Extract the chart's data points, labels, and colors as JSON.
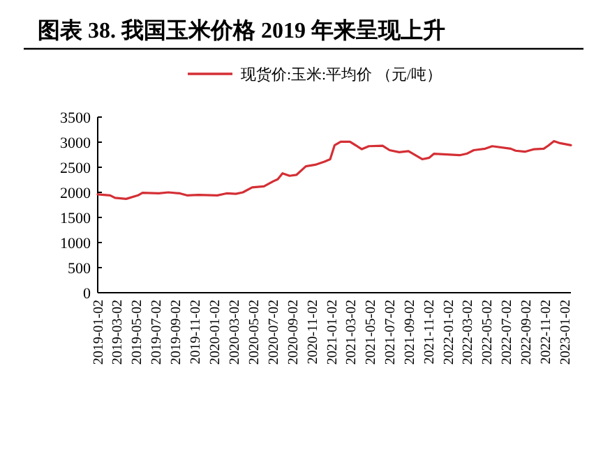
{
  "chart_data": {
    "type": "line",
    "title": "图表 38. 我国玉米价格 2019 年来呈现上升",
    "legend": "top",
    "marker": "none",
    "line_style": "solid",
    "ylim": [
      0,
      3500
    ],
    "yticks": [
      0,
      500,
      1000,
      1500,
      2000,
      2500,
      3000,
      3500
    ],
    "xlim": [
      "2019-01-02",
      "2023-01-21"
    ],
    "xticks": [
      "2019-01-02",
      "2019-03-02",
      "2019-05-02",
      "2019-07-02",
      "2019-09-02",
      "2019-11-02",
      "2020-01-02",
      "2020-03-02",
      "2020-05-02",
      "2020-07-02",
      "2020-09-02",
      "2020-11-02",
      "2021-01-02",
      "2021-03-02",
      "2021-05-02",
      "2021-07-02",
      "2021-09-02",
      "2021-11-02",
      "2022-01-02",
      "2022-03-02",
      "2022-05-02",
      "2022-07-02",
      "2022-09-02",
      "2022-11-02",
      "2023-01-02"
    ],
    "x": [
      "2019-01-02",
      "2019-02-10",
      "2019-02-25",
      "2019-04-01",
      "2019-05-08",
      "2019-05-22",
      "2019-07-12",
      "2019-08-11",
      "2019-09-16",
      "2019-10-08",
      "2019-11-13",
      "2020-01-11",
      "2020-02-09",
      "2020-03-09",
      "2020-03-31",
      "2020-04-29",
      "2020-06-05",
      "2020-07-04",
      "2020-07-18",
      "2020-08-02",
      "2020-08-24",
      "2020-09-15",
      "2020-10-14",
      "2020-11-12",
      "2020-12-11",
      "2020-12-29",
      "2021-01-12",
      "2021-01-31",
      "2021-03-01",
      "2021-04-07",
      "2021-04-29",
      "2021-06-11",
      "2021-07-03",
      "2021-08-02",
      "2021-08-31",
      "2021-10-13",
      "2021-11-04",
      "2021-11-19",
      "2022-02-07",
      "2022-03-01",
      "2022-03-23",
      "2022-04-28",
      "2022-05-20",
      "2022-07-17",
      "2022-08-01",
      "2022-08-30",
      "2022-09-28",
      "2022-10-28",
      "2022-11-11",
      "2022-11-29",
      "2022-12-18",
      "2023-01-21"
    ],
    "series": [
      {
        "name": "现货价:玉米:平均价 （元/吨）",
        "color": "#d42f35",
        "values": [
          1960,
          1940,
          1890,
          1870,
          1940,
          1990,
          1980,
          2000,
          1980,
          1940,
          1950,
          1940,
          1980,
          1970,
          2000,
          2100,
          2120,
          2220,
          2260,
          2380,
          2330,
          2350,
          2520,
          2550,
          2610,
          2660,
          2940,
          3010,
          3010,
          2860,
          2920,
          2930,
          2840,
          2800,
          2820,
          2660,
          2690,
          2770,
          2740,
          2770,
          2840,
          2870,
          2920,
          2870,
          2830,
          2810,
          2860,
          2870,
          2930,
          3020,
          2980,
          2940
        ]
      }
    ]
  }
}
